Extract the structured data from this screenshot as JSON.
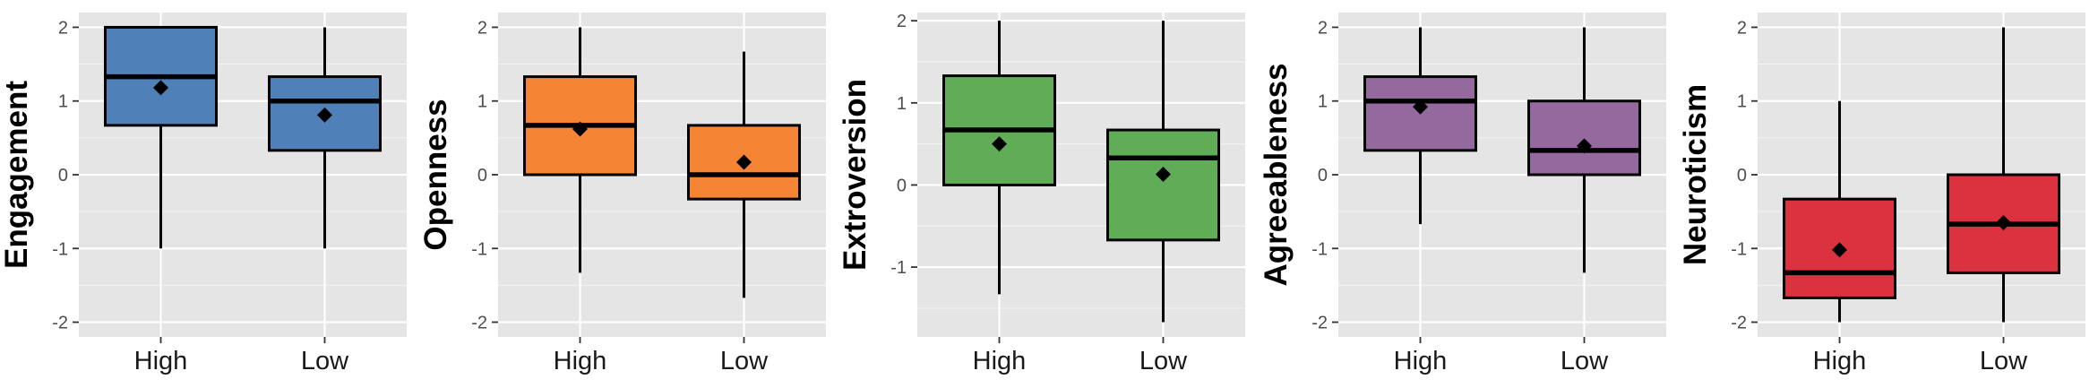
{
  "chart_data": [
    {
      "type": "boxplot",
      "ylabel": "Engagement",
      "color": "#4f81b8",
      "categories": [
        "High",
        "Low"
      ],
      "ylim": [
        -2.2,
        2.2
      ],
      "yticks": [
        -2,
        -1,
        0,
        1,
        2
      ],
      "ytick_labels": [
        "-2",
        "-1",
        "0",
        "1",
        "2"
      ],
      "grid": true,
      "boxes": [
        {
          "category": "High",
          "min": -1,
          "q1": 0.67,
          "median": 1.33,
          "q3": 2,
          "max": 2,
          "mean": 1.18
        },
        {
          "category": "Low",
          "min": -1,
          "q1": 0.33,
          "median": 1,
          "q3": 1.33,
          "max": 2,
          "mean": 0.81
        }
      ]
    },
    {
      "type": "boxplot",
      "ylabel": "Openness",
      "color": "#f58535",
      "categories": [
        "High",
        "Low"
      ],
      "ylim": [
        -2.2,
        2.2
      ],
      "yticks": [
        -2,
        -1,
        0,
        1,
        2
      ],
      "ytick_labels": [
        "-2",
        "-1",
        "0",
        "1",
        "2"
      ],
      "grid": true,
      "boxes": [
        {
          "category": "High",
          "min": -1.33,
          "q1": 0,
          "median": 0.67,
          "q3": 1.33,
          "max": 2,
          "mean": 0.62
        },
        {
          "category": "Low",
          "min": -1.67,
          "q1": -0.33,
          "median": 0,
          "q3": 0.67,
          "max": 1.67,
          "mean": 0.17
        }
      ]
    },
    {
      "type": "boxplot",
      "ylabel": "Extroversion",
      "color": "#60ac57",
      "categories": [
        "High",
        "Low"
      ],
      "ylim": [
        -1.85,
        2.1
      ],
      "yticks": [
        -1,
        0,
        1,
        2
      ],
      "ytick_labels": [
        "-1",
        "0",
        "1",
        "2"
      ],
      "grid": true,
      "boxes": [
        {
          "category": "High",
          "min": -1.33,
          "q1": 0,
          "median": 0.67,
          "q3": 1.33,
          "max": 2,
          "mean": 0.5
        },
        {
          "category": "Low",
          "min": -1.67,
          "q1": -0.67,
          "median": 0.33,
          "q3": 0.67,
          "max": 2,
          "mean": 0.13
        }
      ]
    },
    {
      "type": "boxplot",
      "ylabel": "Agreeableness",
      "color": "#93699e",
      "categories": [
        "High",
        "Low"
      ],
      "ylim": [
        -2.2,
        2.2
      ],
      "yticks": [
        -2,
        -1,
        0,
        1,
        2
      ],
      "ytick_labels": [
        "-2",
        "-1",
        "0",
        "1",
        "2"
      ],
      "grid": true,
      "boxes": [
        {
          "category": "High",
          "min": -0.67,
          "q1": 0.33,
          "median": 1,
          "q3": 1.33,
          "max": 2,
          "mean": 0.92
        },
        {
          "category": "Low",
          "min": -1.33,
          "q1": 0,
          "median": 0.33,
          "q3": 1,
          "max": 2,
          "mean": 0.39
        }
      ]
    },
    {
      "type": "boxplot",
      "ylabel": "Neuroticism",
      "color": "#dc3240",
      "categories": [
        "High",
        "Low"
      ],
      "ylim": [
        -2.2,
        2.2
      ],
      "yticks": [
        -2,
        -1,
        0,
        1,
        2
      ],
      "ytick_labels": [
        "-2",
        "-1",
        "0",
        "1",
        "2"
      ],
      "grid": true,
      "boxes": [
        {
          "category": "High",
          "min": -2,
          "q1": -1.67,
          "median": -1.33,
          "q3": -0.33,
          "max": 1,
          "mean": -1.02
        },
        {
          "category": "Low",
          "min": -2,
          "q1": -1.33,
          "median": -0.67,
          "q3": 0,
          "max": 2,
          "mean": -0.65
        }
      ]
    }
  ]
}
